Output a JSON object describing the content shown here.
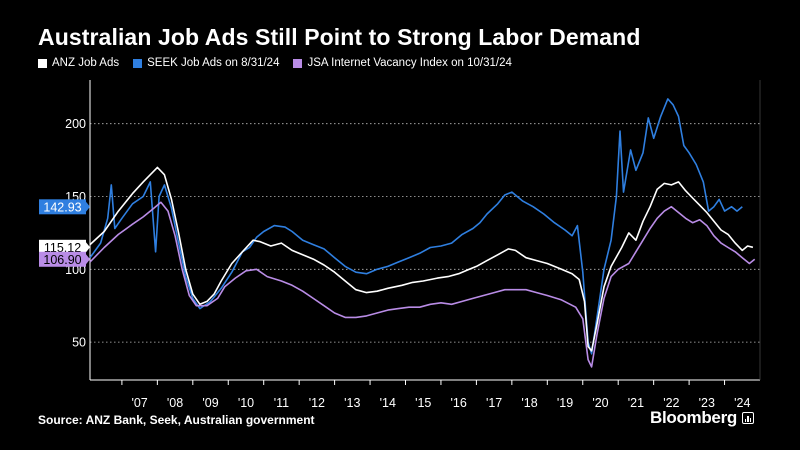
{
  "header": {
    "title": "Australian Job Ads Still Point to Strong Labor Demand"
  },
  "legend": [
    {
      "label": "ANZ Job Ads",
      "color": "#ffffff"
    },
    {
      "label": "SEEK Job Ads on 8/31/24",
      "color": "#2f7fe0"
    },
    {
      "label": "JSA Internet Vacancy Index on 10/31/24",
      "color": "#b98ce6"
    }
  ],
  "footer": {
    "source": "Source: ANZ Bank, Seek, Australian government",
    "brand": "Bloomberg"
  },
  "chart_data": {
    "type": "line",
    "title": "Australian Job Ads Still Point to Strong Labor Demand",
    "xlabel": "",
    "ylabel": "",
    "x_range": [
      2006.1,
      2025.0
    ],
    "ylim": [
      24,
      230
    ],
    "y_ticks": [
      50,
      100,
      150,
      200
    ],
    "x_ticks": [
      {
        "label": "'07",
        "x": 2007.0
      },
      {
        "label": "'08",
        "x": 2008.0
      },
      {
        "label": "'09",
        "x": 2009.0
      },
      {
        "label": "'10",
        "x": 2010.0
      },
      {
        "label": "'11",
        "x": 2011.0
      },
      {
        "label": "'12",
        "x": 2012.0
      },
      {
        "label": "'13",
        "x": 2013.0
      },
      {
        "label": "'14",
        "x": 2014.0
      },
      {
        "label": "'15",
        "x": 2015.0
      },
      {
        "label": "'16",
        "x": 2016.0
      },
      {
        "label": "'17",
        "x": 2017.0
      },
      {
        "label": "'18",
        "x": 2018.0
      },
      {
        "label": "'19",
        "x": 2019.0
      },
      {
        "label": "'20",
        "x": 2020.0
      },
      {
        "label": "'21",
        "x": 2021.0
      },
      {
        "label": "'22",
        "x": 2022.0
      },
      {
        "label": "'23",
        "x": 2023.0
      },
      {
        "label": "'24",
        "x": 2024.0
      }
    ],
    "grid": "horizontal dotted",
    "legend_position": "top-left",
    "series": [
      {
        "name": "ANZ Job Ads",
        "color": "#ffffff",
        "last_value_label": "115.12",
        "points": [
          [
            2006.1,
            117
          ],
          [
            2006.5,
            126
          ],
          [
            2006.9,
            140
          ],
          [
            2007.3,
            152
          ],
          [
            2007.6,
            160
          ],
          [
            2007.8,
            165
          ],
          [
            2008.0,
            170
          ],
          [
            2008.2,
            165
          ],
          [
            2008.4,
            148
          ],
          [
            2008.6,
            125
          ],
          [
            2008.8,
            100
          ],
          [
            2009.0,
            83
          ],
          [
            2009.2,
            76
          ],
          [
            2009.4,
            78
          ],
          [
            2009.6,
            83
          ],
          [
            2009.8,
            92
          ],
          [
            2010.1,
            104
          ],
          [
            2010.4,
            112
          ],
          [
            2010.7,
            120
          ],
          [
            2010.9,
            119
          ],
          [
            2011.2,
            116
          ],
          [
            2011.5,
            118
          ],
          [
            2011.8,
            113
          ],
          [
            2012.1,
            110
          ],
          [
            2012.4,
            107
          ],
          [
            2012.7,
            103
          ],
          [
            2013.0,
            98
          ],
          [
            2013.3,
            92
          ],
          [
            2013.6,
            86
          ],
          [
            2013.9,
            84
          ],
          [
            2014.2,
            85
          ],
          [
            2014.5,
            87
          ],
          [
            2014.9,
            89
          ],
          [
            2015.2,
            91
          ],
          [
            2015.5,
            92
          ],
          [
            2015.9,
            94
          ],
          [
            2016.2,
            95
          ],
          [
            2016.5,
            97
          ],
          [
            2016.8,
            100
          ],
          [
            2017.0,
            102
          ],
          [
            2017.3,
            106
          ],
          [
            2017.6,
            110
          ],
          [
            2017.9,
            114
          ],
          [
            2018.1,
            113
          ],
          [
            2018.4,
            108
          ],
          [
            2018.7,
            106
          ],
          [
            2019.0,
            104
          ],
          [
            2019.4,
            100
          ],
          [
            2019.7,
            97
          ],
          [
            2019.9,
            93
          ],
          [
            2020.05,
            78
          ],
          [
            2020.15,
            47
          ],
          [
            2020.25,
            44
          ],
          [
            2020.4,
            62
          ],
          [
            2020.6,
            88
          ],
          [
            2020.8,
            102
          ],
          [
            2021.1,
            115
          ],
          [
            2021.3,
            125
          ],
          [
            2021.5,
            120
          ],
          [
            2021.7,
            133
          ],
          [
            2021.9,
            143
          ],
          [
            2022.1,
            155
          ],
          [
            2022.3,
            159
          ],
          [
            2022.5,
            158
          ],
          [
            2022.7,
            160
          ],
          [
            2022.9,
            154
          ],
          [
            2023.1,
            149
          ],
          [
            2023.3,
            144
          ],
          [
            2023.5,
            139
          ],
          [
            2023.7,
            133
          ],
          [
            2023.9,
            127
          ],
          [
            2024.1,
            124
          ],
          [
            2024.3,
            118
          ],
          [
            2024.5,
            113
          ],
          [
            2024.65,
            116
          ],
          [
            2024.8,
            115.12
          ]
        ]
      },
      {
        "name": "SEEK Job Ads on 8/31/24",
        "color": "#2f7fe0",
        "last_value_label": "142.93",
        "points": [
          [
            2006.1,
            108
          ],
          [
            2006.4,
            118
          ],
          [
            2006.6,
            135
          ],
          [
            2006.7,
            158
          ],
          [
            2006.8,
            128
          ],
          [
            2007.0,
            135
          ],
          [
            2007.3,
            145
          ],
          [
            2007.6,
            150
          ],
          [
            2007.8,
            160
          ],
          [
            2007.95,
            112
          ],
          [
            2008.05,
            150
          ],
          [
            2008.2,
            158
          ],
          [
            2008.4,
            142
          ],
          [
            2008.6,
            118
          ],
          [
            2008.8,
            95
          ],
          [
            2009.0,
            80
          ],
          [
            2009.2,
            73
          ],
          [
            2009.5,
            78
          ],
          [
            2009.8,
            87
          ],
          [
            2010.1,
            98
          ],
          [
            2010.4,
            112
          ],
          [
            2010.6,
            115
          ],
          [
            2010.8,
            122
          ],
          [
            2011.0,
            126
          ],
          [
            2011.3,
            130
          ],
          [
            2011.6,
            129
          ],
          [
            2011.8,
            126
          ],
          [
            2012.1,
            120
          ],
          [
            2012.4,
            117
          ],
          [
            2012.7,
            114
          ],
          [
            2013.0,
            108
          ],
          [
            2013.3,
            102
          ],
          [
            2013.6,
            98
          ],
          [
            2013.9,
            97
          ],
          [
            2014.2,
            100
          ],
          [
            2014.5,
            102
          ],
          [
            2014.8,
            105
          ],
          [
            2015.1,
            108
          ],
          [
            2015.4,
            111
          ],
          [
            2015.7,
            115
          ],
          [
            2016.0,
            116
          ],
          [
            2016.3,
            118
          ],
          [
            2016.6,
            124
          ],
          [
            2016.9,
            128
          ],
          [
            2017.1,
            132
          ],
          [
            2017.3,
            138
          ],
          [
            2017.6,
            145
          ],
          [
            2017.8,
            151
          ],
          [
            2018.0,
            153
          ],
          [
            2018.3,
            147
          ],
          [
            2018.6,
            143
          ],
          [
            2018.9,
            138
          ],
          [
            2019.2,
            132
          ],
          [
            2019.5,
            127
          ],
          [
            2019.7,
            123
          ],
          [
            2019.85,
            130
          ],
          [
            2020.0,
            98
          ],
          [
            2020.15,
            50
          ],
          [
            2020.25,
            42
          ],
          [
            2020.45,
            75
          ],
          [
            2020.6,
            100
          ],
          [
            2020.8,
            120
          ],
          [
            2020.95,
            150
          ],
          [
            2021.05,
            195
          ],
          [
            2021.15,
            153
          ],
          [
            2021.35,
            182
          ],
          [
            2021.5,
            168
          ],
          [
            2021.7,
            180
          ],
          [
            2021.85,
            204
          ],
          [
            2022.0,
            190
          ],
          [
            2022.2,
            205
          ],
          [
            2022.4,
            217
          ],
          [
            2022.55,
            213
          ],
          [
            2022.7,
            205
          ],
          [
            2022.85,
            185
          ],
          [
            2023.0,
            180
          ],
          [
            2023.2,
            172
          ],
          [
            2023.4,
            160
          ],
          [
            2023.55,
            140
          ],
          [
            2023.7,
            143
          ],
          [
            2023.85,
            148
          ],
          [
            2024.0,
            140
          ],
          [
            2024.2,
            143
          ],
          [
            2024.35,
            140
          ],
          [
            2024.5,
            142.93
          ]
        ]
      },
      {
        "name": "JSA Internet Vacancy Index on 10/31/24",
        "color": "#b98ce6",
        "last_value_label": "106.90",
        "points": [
          [
            2006.1,
            105
          ],
          [
            2006.5,
            115
          ],
          [
            2006.9,
            124
          ],
          [
            2007.3,
            131
          ],
          [
            2007.6,
            136
          ],
          [
            2007.9,
            142
          ],
          [
            2008.1,
            146
          ],
          [
            2008.3,
            140
          ],
          [
            2008.5,
            123
          ],
          [
            2008.7,
            100
          ],
          [
            2008.9,
            82
          ],
          [
            2009.1,
            75
          ],
          [
            2009.4,
            75
          ],
          [
            2009.7,
            80
          ],
          [
            2009.9,
            88
          ],
          [
            2010.2,
            94
          ],
          [
            2010.5,
            99
          ],
          [
            2010.8,
            100
          ],
          [
            2011.1,
            95
          ],
          [
            2011.5,
            92
          ],
          [
            2011.8,
            89
          ],
          [
            2012.1,
            85
          ],
          [
            2012.4,
            80
          ],
          [
            2012.7,
            75
          ],
          [
            2013.0,
            70
          ],
          [
            2013.3,
            67
          ],
          [
            2013.6,
            67
          ],
          [
            2013.9,
            68
          ],
          [
            2014.2,
            70
          ],
          [
            2014.5,
            72
          ],
          [
            2014.8,
            73
          ],
          [
            2015.1,
            74
          ],
          [
            2015.4,
            74
          ],
          [
            2015.7,
            76
          ],
          [
            2016.0,
            77
          ],
          [
            2016.3,
            76
          ],
          [
            2016.6,
            78
          ],
          [
            2016.9,
            80
          ],
          [
            2017.2,
            82
          ],
          [
            2017.5,
            84
          ],
          [
            2017.8,
            86
          ],
          [
            2018.1,
            86
          ],
          [
            2018.4,
            86
          ],
          [
            2018.7,
            84
          ],
          [
            2019.0,
            82
          ],
          [
            2019.4,
            79
          ],
          [
            2019.8,
            74
          ],
          [
            2020.0,
            66
          ],
          [
            2020.15,
            38
          ],
          [
            2020.25,
            33
          ],
          [
            2020.4,
            55
          ],
          [
            2020.6,
            80
          ],
          [
            2020.8,
            95
          ],
          [
            2021.0,
            100
          ],
          [
            2021.3,
            104
          ],
          [
            2021.5,
            112
          ],
          [
            2021.7,
            120
          ],
          [
            2021.9,
            128
          ],
          [
            2022.1,
            135
          ],
          [
            2022.3,
            140
          ],
          [
            2022.5,
            143
          ],
          [
            2022.7,
            139
          ],
          [
            2022.9,
            135
          ],
          [
            2023.1,
            132
          ],
          [
            2023.3,
            134
          ],
          [
            2023.5,
            130
          ],
          [
            2023.7,
            123
          ],
          [
            2023.9,
            118
          ],
          [
            2024.1,
            115
          ],
          [
            2024.3,
            112
          ],
          [
            2024.5,
            108
          ],
          [
            2024.7,
            104
          ],
          [
            2024.85,
            106.9
          ]
        ]
      }
    ]
  }
}
